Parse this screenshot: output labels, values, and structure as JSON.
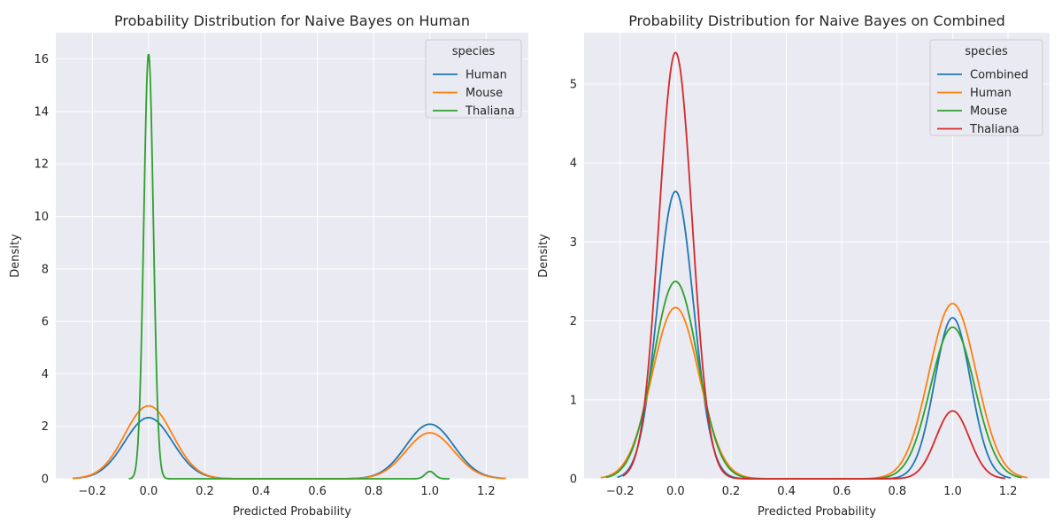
{
  "chart_data": [
    {
      "type": "line",
      "title": "Probability Distribution for Naive Bayes on Human",
      "xlabel": "Predicted Probability",
      "ylabel": "Density",
      "xlim": [
        -0.33,
        1.35
      ],
      "ylim": [
        0,
        17
      ],
      "xticks": [
        -0.2,
        0.0,
        0.2,
        0.4,
        0.6,
        0.8,
        1.0,
        1.2
      ],
      "xtick_labels": [
        "−0.2",
        "0.0",
        "0.2",
        "0.4",
        "0.6",
        "0.8",
        "1.0",
        "1.2"
      ],
      "yticks": [
        0,
        2,
        4,
        6,
        8,
        10,
        12,
        14,
        16
      ],
      "ytick_labels": [
        "0",
        "2",
        "4",
        "6",
        "8",
        "10",
        "12",
        "14",
        "16"
      ],
      "grid": true,
      "legend": {
        "title": "species",
        "position": "top-right"
      },
      "series": [
        {
          "name": "Human",
          "color": "#1f77b4",
          "x_range": [
            -0.27,
            1.27
          ],
          "peaks": [
            {
              "x": 0.0,
              "density": 2.33,
              "sd": 0.085
            },
            {
              "x": 1.0,
              "density": 2.08,
              "sd": 0.085
            }
          ]
        },
        {
          "name": "Mouse",
          "color": "#ff7f0e",
          "x_range": [
            -0.27,
            1.27
          ],
          "peaks": [
            {
              "x": 0.0,
              "density": 2.78,
              "sd": 0.085
            },
            {
              "x": 1.0,
              "density": 1.75,
              "sd": 0.085
            }
          ]
        },
        {
          "name": "Thaliana",
          "color": "#2ca02c",
          "x_range": [
            -0.07,
            1.07
          ],
          "peaks": [
            {
              "x": 0.0,
              "density": 16.2,
              "sd": 0.017
            },
            {
              "x": 1.0,
              "density": 0.28,
              "sd": 0.017
            }
          ]
        }
      ]
    },
    {
      "type": "line",
      "title": "Probability Distribution for Naive Bayes on Combined",
      "xlabel": "Predicted Probability",
      "ylabel": "Density",
      "xlim": [
        -0.33,
        1.35
      ],
      "ylim": [
        0,
        5.65
      ],
      "xticks": [
        -0.2,
        0.0,
        0.2,
        0.4,
        0.6,
        0.8,
        1.0,
        1.2
      ],
      "xtick_labels": [
        "−0.2",
        "0.0",
        "0.2",
        "0.4",
        "0.6",
        "0.8",
        "1.0",
        "1.2"
      ],
      "yticks": [
        0,
        1,
        2,
        3,
        4,
        5
      ],
      "ytick_labels": [
        "0",
        "1",
        "2",
        "3",
        "4",
        "5"
      ],
      "grid": true,
      "legend": {
        "title": "species",
        "position": "top-right"
      },
      "series": [
        {
          "name": "Combined",
          "color": "#1f77b4",
          "x_range": [
            -0.21,
            1.21
          ],
          "peaks": [
            {
              "x": 0.0,
              "density": 3.64,
              "sd": 0.065
            },
            {
              "x": 1.0,
              "density": 2.04,
              "sd": 0.065
            }
          ]
        },
        {
          "name": "Human",
          "color": "#ff7f0e",
          "x_range": [
            -0.27,
            1.27
          ],
          "peaks": [
            {
              "x": 0.0,
              "density": 2.17,
              "sd": 0.085
            },
            {
              "x": 1.0,
              "density": 2.22,
              "sd": 0.085
            }
          ]
        },
        {
          "name": "Mouse",
          "color": "#2ca02c",
          "x_range": [
            -0.25,
            1.25
          ],
          "peaks": [
            {
              "x": 0.0,
              "density": 2.5,
              "sd": 0.08
            },
            {
              "x": 1.0,
              "density": 1.92,
              "sd": 0.08
            }
          ]
        },
        {
          "name": "Thaliana",
          "color": "#d62728",
          "x_range": [
            -0.19,
            1.19
          ],
          "peaks": [
            {
              "x": 0.0,
              "density": 5.4,
              "sd": 0.06
            },
            {
              "x": 1.0,
              "density": 0.86,
              "sd": 0.06
            }
          ]
        }
      ]
    }
  ]
}
